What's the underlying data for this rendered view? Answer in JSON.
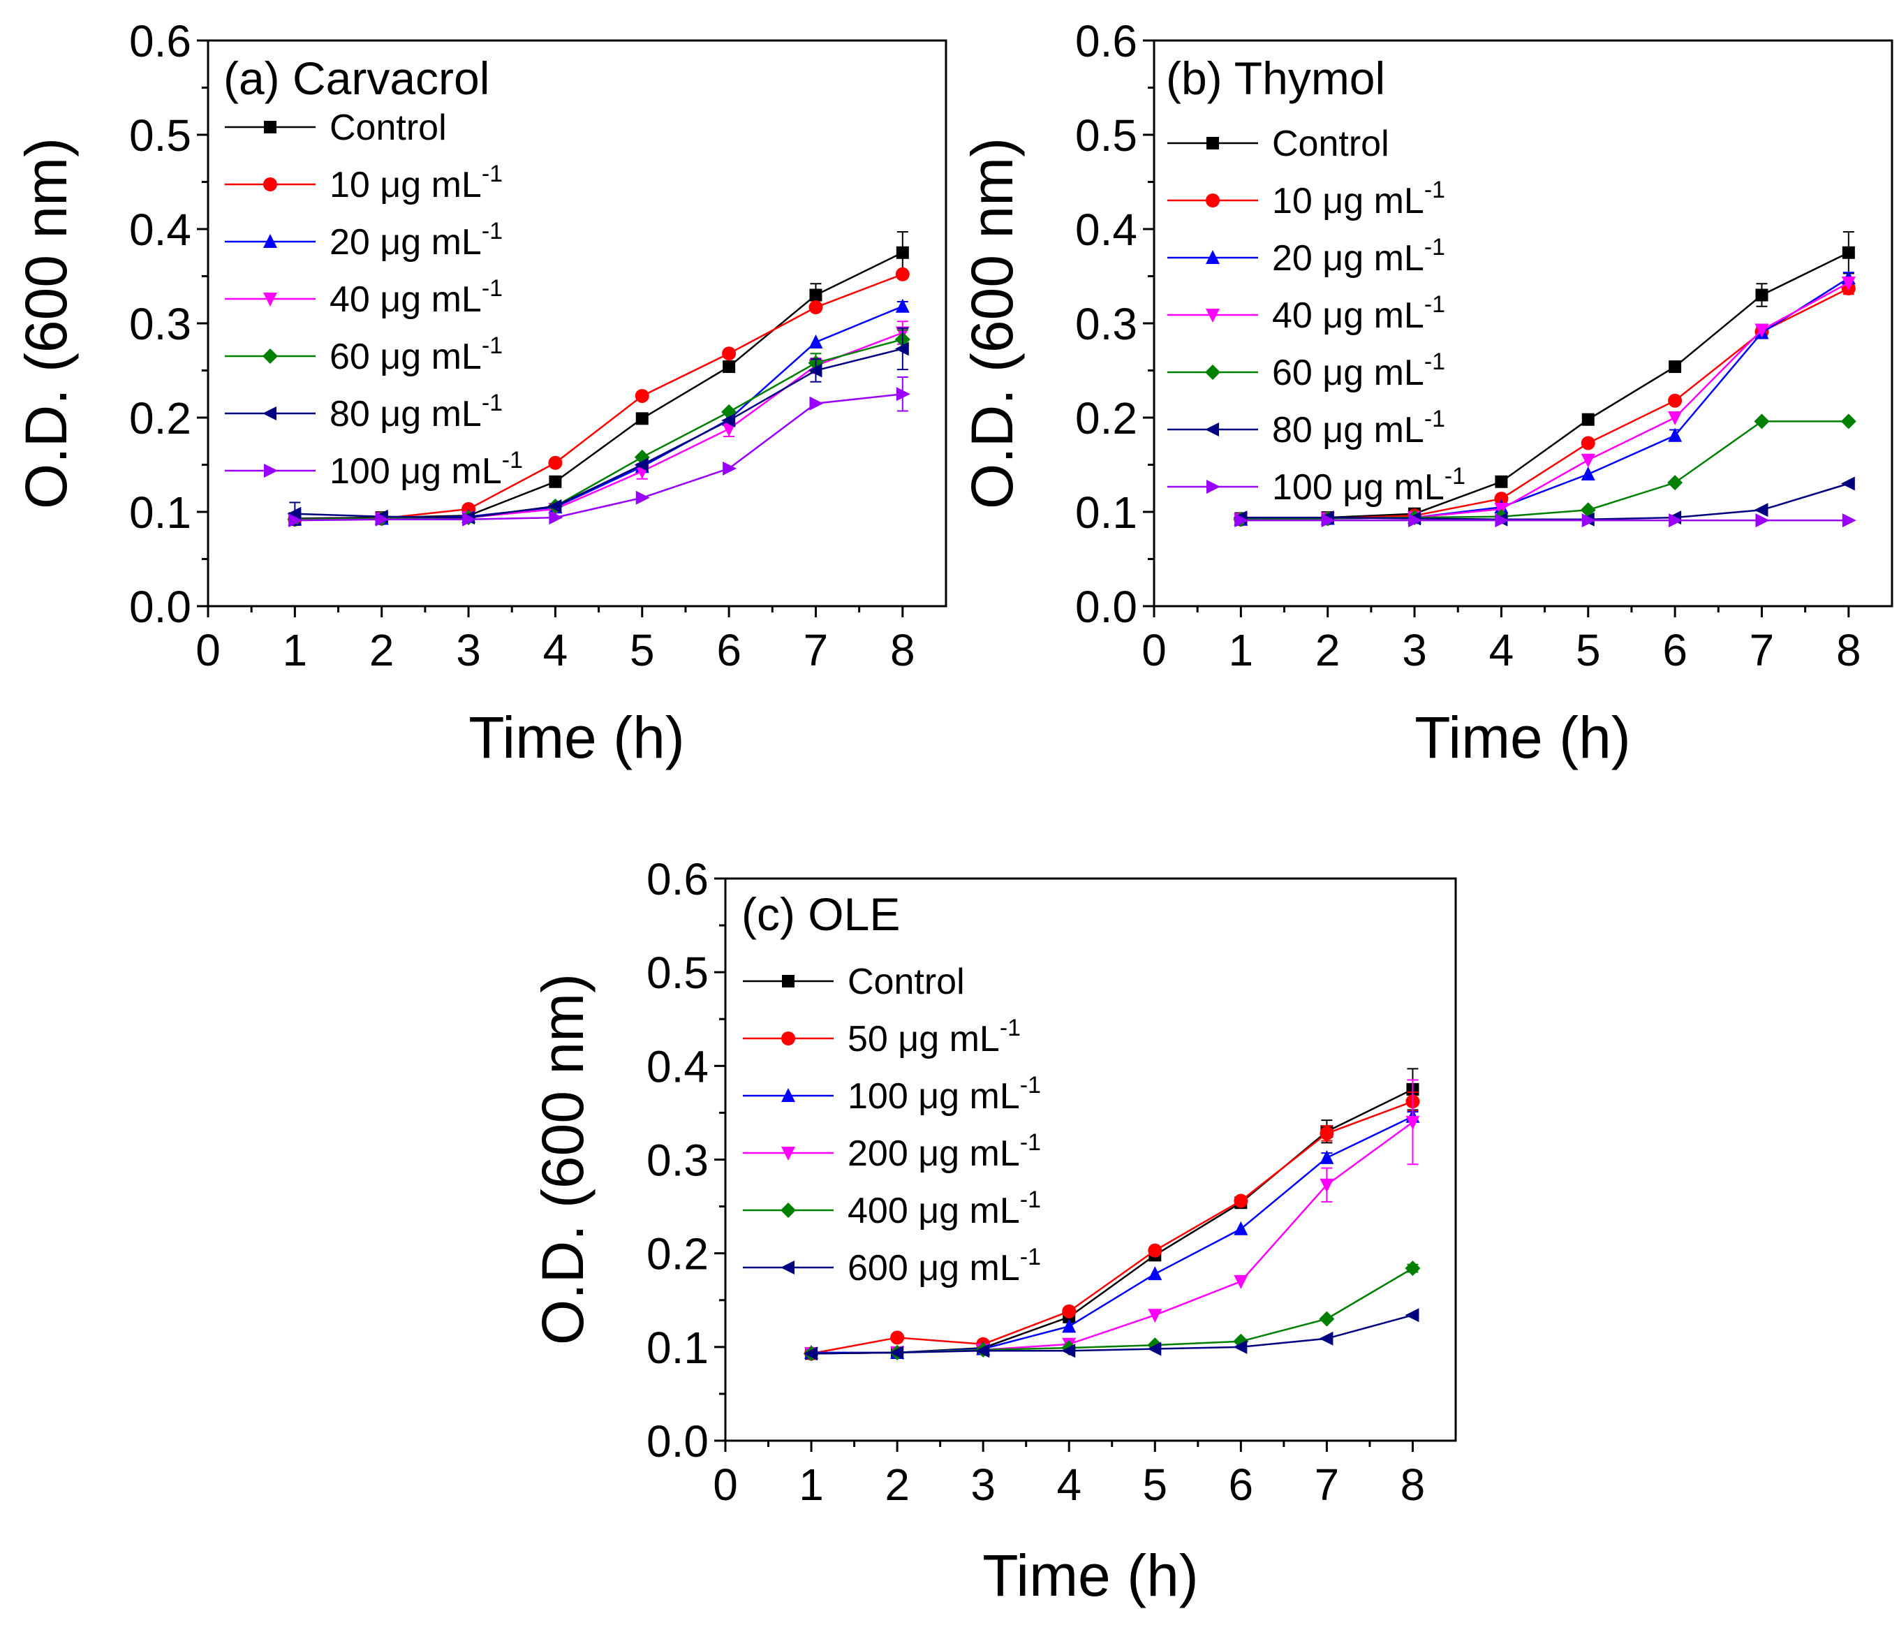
{
  "chart_data": [
    {
      "id": "a",
      "type": "line",
      "title": "(a) Carvacrol",
      "xlabel": "Time (h)",
      "ylabel": "O.D. (600 nm)",
      "xlim": [
        0,
        8.5
      ],
      "ylim": [
        0,
        0.6
      ],
      "xticks": [
        0,
        1,
        2,
        3,
        4,
        5,
        6,
        7,
        8
      ],
      "yticks": [
        "0.0",
        "0.1",
        "0.2",
        "0.3",
        "0.4",
        "0.5",
        "0.6"
      ],
      "x": [
        1,
        2,
        3,
        4,
        5,
        6,
        7,
        8
      ],
      "legend_position": "top-left",
      "series": [
        {
          "name": "Control",
          "unit": "",
          "sup": "",
          "color": "#000000",
          "marker": "square",
          "values": [
            0.093,
            0.094,
            0.096,
            0.132,
            0.199,
            0.254,
            0.33,
            0.375
          ],
          "errors": [
            0,
            0,
            0,
            0.004,
            0.004,
            0.004,
            0.012,
            0.022
          ]
        },
        {
          "name": "10",
          "unit": " μg mL",
          "sup": "-1",
          "color": "#ff0000",
          "marker": "circle",
          "values": [
            0.092,
            0.093,
            0.103,
            0.152,
            0.223,
            0.268,
            0.317,
            0.352
          ],
          "errors": [
            0,
            0,
            0,
            0,
            0,
            0,
            0,
            0
          ]
        },
        {
          "name": "20",
          "unit": " μg mL",
          "sup": "-1",
          "color": "#0000ff",
          "marker": "triangle-up",
          "values": [
            0.092,
            0.093,
            0.095,
            0.105,
            0.148,
            0.198,
            0.28,
            0.318
          ],
          "errors": [
            0,
            0,
            0,
            0,
            0,
            0,
            0,
            0.005
          ]
        },
        {
          "name": "40",
          "unit": " μg mL",
          "sup": "-1",
          "color": "#ff00ff",
          "marker": "triangle-down",
          "values": [
            0.092,
            0.093,
            0.094,
            0.103,
            0.143,
            0.188,
            0.255,
            0.29
          ],
          "errors": [
            0,
            0,
            0,
            0,
            0.008,
            0.008,
            0.008,
            0.012
          ]
        },
        {
          "name": "60",
          "unit": " μg mL",
          "sup": "-1",
          "color": "#008000",
          "marker": "diamond",
          "values": [
            0.092,
            0.093,
            0.094,
            0.106,
            0.158,
            0.206,
            0.258,
            0.283
          ],
          "errors": [
            0,
            0,
            0,
            0,
            0,
            0,
            0.01,
            0.01
          ]
        },
        {
          "name": "80",
          "unit": " μg mL",
          "sup": "-1",
          "color": "#000080",
          "marker": "triangle-left",
          "values": [
            0.098,
            0.095,
            0.094,
            0.106,
            0.15,
            0.197,
            0.25,
            0.273
          ],
          "errors": [
            0.012,
            0,
            0,
            0,
            0,
            0,
            0.012,
            0.022
          ]
        },
        {
          "name": "100",
          "unit": " μg mL",
          "sup": "-1",
          "color": "#9900ff",
          "marker": "triangle-right",
          "values": [
            0.091,
            0.092,
            0.092,
            0.094,
            0.115,
            0.146,
            0.215,
            0.225
          ],
          "errors": [
            0,
            0,
            0,
            0,
            0,
            0,
            0,
            0.018
          ]
        }
      ]
    },
    {
      "id": "b",
      "type": "line",
      "title": "(b) Thymol",
      "xlabel": "Time (h)",
      "ylabel": "O.D. (600 nm)",
      "xlim": [
        0,
        8.5
      ],
      "ylim": [
        0,
        0.6
      ],
      "xticks": [
        0,
        1,
        2,
        3,
        4,
        5,
        6,
        7,
        8
      ],
      "yticks": [
        "0.0",
        "0.1",
        "0.2",
        "0.3",
        "0.4",
        "0.5",
        "0.6"
      ],
      "x": [
        1,
        2,
        3,
        4,
        5,
        6,
        7,
        8
      ],
      "legend_position": "top-left",
      "series": [
        {
          "name": "Control",
          "unit": "",
          "sup": "",
          "color": "#000000",
          "marker": "square",
          "values": [
            0.093,
            0.094,
            0.098,
            0.132,
            0.198,
            0.254,
            0.33,
            0.375
          ],
          "errors": [
            0,
            0,
            0,
            0,
            0.004,
            0.004,
            0.012,
            0.022
          ]
        },
        {
          "name": "10",
          "unit": " μg mL",
          "sup": "-1",
          "color": "#ff0000",
          "marker": "circle",
          "values": [
            0.092,
            0.093,
            0.096,
            0.114,
            0.173,
            0.218,
            0.291,
            0.337
          ],
          "errors": [
            0,
            0,
            0,
            0,
            0,
            0,
            0,
            0.006
          ]
        },
        {
          "name": "20",
          "unit": " μg mL",
          "sup": "-1",
          "color": "#0000ff",
          "marker": "triangle-up",
          "values": [
            0.092,
            0.093,
            0.094,
            0.105,
            0.14,
            0.181,
            0.29,
            0.348
          ],
          "errors": [
            0,
            0,
            0,
            0,
            0,
            0.006,
            0.006,
            0.006
          ]
        },
        {
          "name": "40",
          "unit": " μg mL",
          "sup": "-1",
          "color": "#ff00ff",
          "marker": "triangle-down",
          "values": [
            0.092,
            0.093,
            0.094,
            0.103,
            0.155,
            0.2,
            0.293,
            0.343
          ],
          "errors": [
            0,
            0,
            0,
            0,
            0,
            0,
            0,
            0
          ]
        },
        {
          "name": "60",
          "unit": " μg mL",
          "sup": "-1",
          "color": "#008000",
          "marker": "diamond",
          "values": [
            0.092,
            0.093,
            0.094,
            0.095,
            0.102,
            0.131,
            0.196,
            0.196
          ],
          "errors": [
            0,
            0,
            0,
            0,
            0,
            0,
            0,
            0
          ]
        },
        {
          "name": "80",
          "unit": " μg mL",
          "sup": "-1",
          "color": "#000080",
          "marker": "triangle-left",
          "values": [
            0.094,
            0.094,
            0.093,
            0.092,
            0.092,
            0.094,
            0.102,
            0.13
          ],
          "errors": [
            0,
            0,
            0,
            0,
            0,
            0,
            0,
            0
          ]
        },
        {
          "name": "100",
          "unit": " μg mL",
          "sup": "-1",
          "color": "#9900ff",
          "marker": "triangle-right",
          "values": [
            0.091,
            0.091,
            0.091,
            0.091,
            0.091,
            0.091,
            0.091,
            0.091
          ],
          "errors": [
            0,
            0,
            0,
            0,
            0,
            0,
            0,
            0
          ]
        }
      ]
    },
    {
      "id": "c",
      "type": "line",
      "title": "(c) OLE",
      "xlabel": "Time (h)",
      "ylabel": "O.D. (600 nm)",
      "xlim": [
        0,
        8.5
      ],
      "ylim": [
        0,
        0.6
      ],
      "xticks": [
        0,
        1,
        2,
        3,
        4,
        5,
        6,
        7,
        8
      ],
      "yticks": [
        "0.0",
        "0.1",
        "0.2",
        "0.3",
        "0.4",
        "0.5",
        "0.6"
      ],
      "x": [
        1,
        2,
        3,
        4,
        5,
        6,
        7,
        8
      ],
      "legend_position": "top-left",
      "series": [
        {
          "name": "Control",
          "unit": "",
          "sup": "",
          "color": "#000000",
          "marker": "square",
          "values": [
            0.093,
            0.094,
            0.099,
            0.132,
            0.198,
            0.254,
            0.33,
            0.375
          ],
          "errors": [
            0,
            0,
            0,
            0,
            0.004,
            0.004,
            0.012,
            0.022
          ]
        },
        {
          "name": "50",
          "unit": " μg mL",
          "sup": "-1",
          "color": "#ff0000",
          "marker": "circle",
          "values": [
            0.093,
            0.11,
            0.103,
            0.138,
            0.203,
            0.256,
            0.328,
            0.362
          ],
          "errors": [
            0,
            0,
            0,
            0,
            0,
            0,
            0.008,
            0.01
          ]
        },
        {
          "name": "100",
          "unit": " μg mL",
          "sup": "-1",
          "color": "#0000ff",
          "marker": "triangle-up",
          "values": [
            0.094,
            0.094,
            0.098,
            0.122,
            0.178,
            0.226,
            0.302,
            0.346
          ],
          "errors": [
            0,
            0,
            0,
            0,
            0,
            0,
            0.005,
            0.005
          ]
        },
        {
          "name": "200",
          "unit": " μg mL",
          "sup": "-1",
          "color": "#ff00ff",
          "marker": "triangle-down",
          "values": [
            0.093,
            0.094,
            0.097,
            0.103,
            0.134,
            0.17,
            0.273,
            0.34
          ],
          "errors": [
            0,
            0,
            0,
            0,
            0,
            0,
            0.018,
            0.045
          ]
        },
        {
          "name": "400",
          "unit": " μg mL",
          "sup": "-1",
          "color": "#008000",
          "marker": "diamond",
          "values": [
            0.093,
            0.094,
            0.097,
            0.099,
            0.102,
            0.106,
            0.13,
            0.184
          ],
          "errors": [
            0,
            0,
            0,
            0,
            0,
            0,
            0,
            0.004
          ]
        },
        {
          "name": "600",
          "unit": " μg mL",
          "sup": "-1",
          "color": "#000080",
          "marker": "triangle-left",
          "values": [
            0.093,
            0.094,
            0.096,
            0.096,
            0.098,
            0.1,
            0.109,
            0.134
          ],
          "errors": [
            0,
            0,
            0,
            0,
            0,
            0,
            0,
            0
          ]
        }
      ]
    }
  ]
}
